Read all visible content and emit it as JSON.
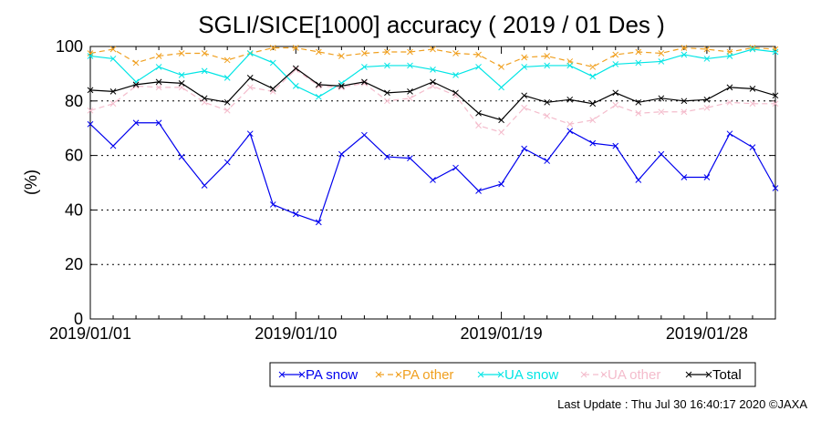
{
  "chart_data": {
    "type": "line",
    "title": "SGLI/SICE[1000] accuracy ( 2019 / 01 Des )",
    "ylabel": "(%)",
    "xlabel": "",
    "ylim": [
      0,
      100
    ],
    "yticks": [
      0,
      20,
      40,
      60,
      80,
      100
    ],
    "x_start": "2019/01/01",
    "x_end": "2019/01/31",
    "xticks": [
      "2019/01/01",
      "2019/01/10",
      "2019/01/19",
      "2019/01/28"
    ],
    "grid": "horizontal dotted at 20, 40, 60, 80",
    "legend_position": "bottom",
    "x": [
      "2019/01/01",
      "2019/01/02",
      "2019/01/03",
      "2019/01/04",
      "2019/01/05",
      "2019/01/06",
      "2019/01/07",
      "2019/01/08",
      "2019/01/09",
      "2019/01/10",
      "2019/01/11",
      "2019/01/12",
      "2019/01/13",
      "2019/01/14",
      "2019/01/15",
      "2019/01/16",
      "2019/01/17",
      "2019/01/18",
      "2019/01/19",
      "2019/01/20",
      "2019/01/21",
      "2019/01/22",
      "2019/01/23",
      "2019/01/24",
      "2019/01/25",
      "2019/01/26",
      "2019/01/27",
      "2019/01/28",
      "2019/01/29",
      "2019/01/30",
      "2019/01/31"
    ],
    "series": [
      {
        "name": "PA snow",
        "color": "#0000ee",
        "dashed": false,
        "values": [
          71.5,
          63.5,
          72.0,
          72.0,
          59.5,
          49.0,
          57.5,
          68.0,
          42.0,
          38.5,
          35.5,
          60.5,
          67.5,
          59.5,
          59.0,
          51.0,
          55.5,
          47.0,
          49.5,
          62.5,
          58.0,
          69.0,
          64.5,
          63.5,
          51.0,
          60.5,
          52.0,
          52.0,
          68.0,
          63.0,
          48.0
        ]
      },
      {
        "name": "PA other",
        "color": "#f0a020",
        "dashed": true,
        "values": [
          97.5,
          99.0,
          94.0,
          96.5,
          97.5,
          97.5,
          95.0,
          97.5,
          99.5,
          99.5,
          98.0,
          96.5,
          97.5,
          98.0,
          98.0,
          99.0,
          97.5,
          97.0,
          92.5,
          96.0,
          96.5,
          94.5,
          92.5,
          97.0,
          98.0,
          97.5,
          99.5,
          99.0,
          98.0,
          99.5,
          99.0
        ]
      },
      {
        "name": "UA snow",
        "color": "#00e5e5",
        "dashed": false,
        "values": [
          96.5,
          95.5,
          87.0,
          92.5,
          89.5,
          91.0,
          88.5,
          97.5,
          94.0,
          85.5,
          81.5,
          86.5,
          92.5,
          93.0,
          93.0,
          91.5,
          89.5,
          92.5,
          85.0,
          92.5,
          93.0,
          93.0,
          89.0,
          93.5,
          94.0,
          94.5,
          97.0,
          95.5,
          96.5,
          99.0,
          98.0
        ]
      },
      {
        "name": "UA other",
        "color": "#f4bccc",
        "dashed": true,
        "values": [
          76.5,
          79.0,
          85.5,
          85.0,
          85.0,
          79.5,
          76.5,
          85.0,
          83.5,
          91.5,
          85.5,
          85.0,
          86.5,
          80.0,
          81.0,
          85.5,
          82.0,
          71.0,
          68.5,
          77.5,
          74.5,
          71.5,
          73.0,
          78.5,
          75.5,
          76.0,
          76.0,
          77.5,
          79.5,
          79.0,
          79.0
        ]
      },
      {
        "name": "Total",
        "color": "#000000",
        "dashed": false,
        "values": [
          84.0,
          83.5,
          86.0,
          87.0,
          86.5,
          81.0,
          79.5,
          88.5,
          84.5,
          92.0,
          86.0,
          85.5,
          87.0,
          83.0,
          83.5,
          87.0,
          83.0,
          75.5,
          73.0,
          82.0,
          79.5,
          80.5,
          79.0,
          83.0,
          79.5,
          81.0,
          80.0,
          80.5,
          85.0,
          84.5,
          82.0
        ]
      }
    ]
  },
  "footer": {
    "last_update": "Last Update : Thu Jul 30 16:40:17 2020  ©JAXA"
  }
}
